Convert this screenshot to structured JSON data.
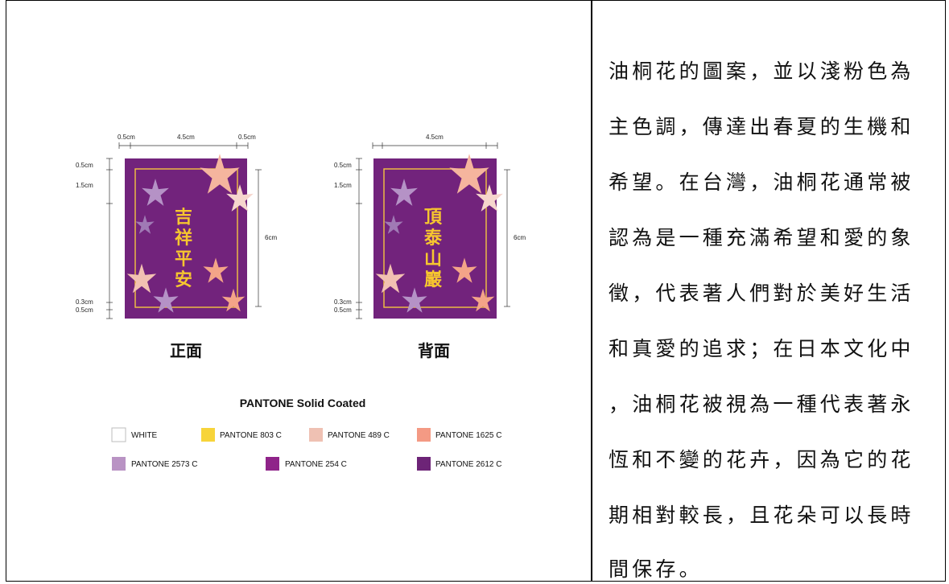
{
  "figure": {
    "front": {
      "label": "正面",
      "chars": [
        "吉",
        "祥",
        "平",
        "安"
      ],
      "dims": {
        "top_left": "0.5cm",
        "top_mid": "4.5cm",
        "top_right": "0.5cm",
        "left_a": "0.5cm",
        "left_b": "1.5cm",
        "left_c": "0.3cm",
        "left_d": "0.5cm",
        "right": "6cm"
      }
    },
    "back": {
      "label": "背面",
      "chars": [
        "頂",
        "泰",
        "山",
        "巖"
      ],
      "dims": {
        "top_mid": "4.5cm",
        "left_a": "0.5cm",
        "left_b": "1.5cm",
        "left_c": "0.3cm",
        "left_d": "0.5cm",
        "right": "6cm"
      }
    },
    "pantone": {
      "title": "PANTONE Solid Coated",
      "swatches": [
        {
          "name": "WHITE",
          "color": "#ffffff"
        },
        {
          "name": "PANTONE 803 C",
          "color": "#f7d43a"
        },
        {
          "name": "PANTONE 489 C",
          "color": "#efc1b3"
        },
        {
          "name": "PANTONE 1625 C",
          "color": "#f49a84"
        },
        {
          "name": "PANTONE 2573 C",
          "color": "#b993c4"
        },
        {
          "name": "PANTONE 254 C",
          "color": "#8f2489"
        },
        {
          "name": "PANTONE 2612 C",
          "color": "#6d2477"
        }
      ]
    }
  },
  "description_lines": [
    "油桐花的圖案，並以淺粉色為",
    "主色調，傳達出春夏的生機和",
    "希望。在台灣，油桐花通常被",
    "認為是一種充滿希望和愛的象",
    "徵，代表著人們對於美好生活",
    "和真愛的追求；在日本文化中",
    "，油桐花被視為一種代表著永",
    "恆和不變的花卉，因為它的花",
    "期相對較長，且花朵可以長時",
    "間保存。"
  ]
}
